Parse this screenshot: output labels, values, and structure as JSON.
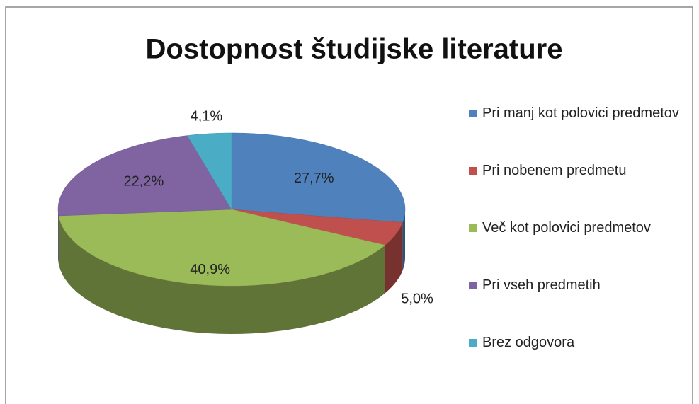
{
  "chart_data": {
    "type": "pie",
    "title": "Dostopnost študijske literature",
    "categories": [
      "Pri manj kot polovici predmetov",
      "Pri nobenem predmetu",
      "Več kot polovici predmetov",
      "Pri vseh predmetih",
      "Brez odgovora"
    ],
    "values": [
      27.7,
      5.0,
      40.9,
      22.2,
      4.1
    ],
    "value_labels": [
      "27,7%",
      "5,0%",
      "40,9%",
      "22,2%",
      "4,1%"
    ],
    "colors": [
      "#4f81bd",
      "#c0504d",
      "#9bbb59",
      "#8064a2",
      "#4bacc6"
    ],
    "legend": "right"
  }
}
